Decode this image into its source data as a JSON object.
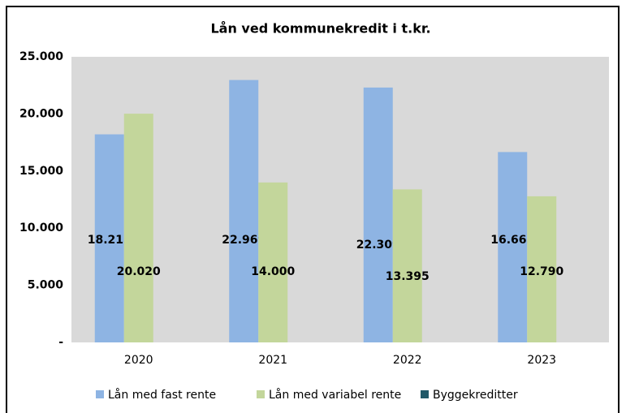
{
  "chart_data": {
    "type": "bar",
    "title": "Lån ved kommunekredit i t.kr.",
    "categories": [
      "2020",
      "2021",
      "2022",
      "2023"
    ],
    "series": [
      {
        "name": "Lån med fast rente",
        "color": "#8eb4e3",
        "values": [
          18213,
          22969,
          22309,
          16663
        ],
        "value_labels": [
          "18.213",
          "22.969",
          "22.309",
          "16.663"
        ]
      },
      {
        "name": "Lån med variabel rente",
        "color": "#c3d69b",
        "values": [
          20020,
          14000,
          13395,
          12790
        ],
        "value_labels": [
          "20.020",
          "14.000",
          "13.395",
          "12.790"
        ]
      },
      {
        "name": "Byggekreditter",
        "color": "#215968",
        "values": [
          0,
          0,
          0,
          0
        ]
      }
    ],
    "ylim": [
      0,
      25000
    ],
    "yticks": [
      {
        "value": 0,
        "label": "-"
      },
      {
        "value": 5000,
        "label": "5.000"
      },
      {
        "value": 10000,
        "label": "10.000"
      },
      {
        "value": 15000,
        "label": "15.000"
      },
      {
        "value": 20000,
        "label": "20.000"
      },
      {
        "value": 25000,
        "label": "25.000"
      }
    ],
    "grid": false,
    "legend": "bottom",
    "plot_background": "#d9d9d9"
  }
}
